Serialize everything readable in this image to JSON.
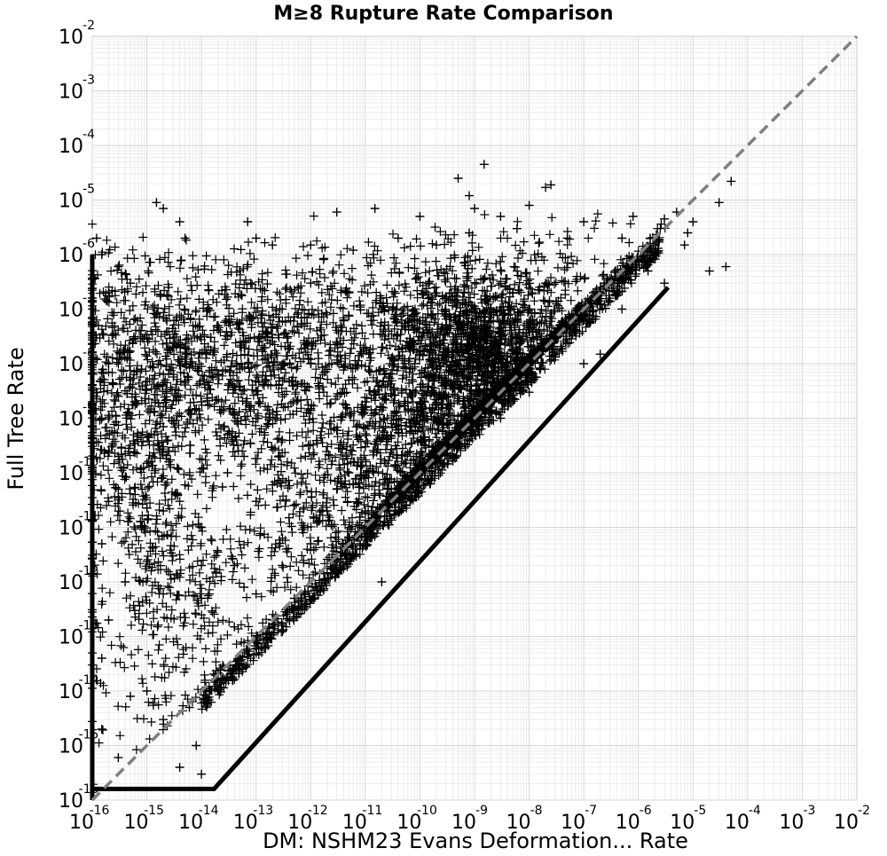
{
  "chart_data": {
    "type": "scatter",
    "title": "M≥8 Rupture Rate Comparison",
    "xlabel": "DM: NSHM23 Evans Deformation... Rate",
    "ylabel": "Full Tree Rate",
    "xscale": "log",
    "yscale": "log",
    "xlim": [
      1e-16,
      0.01
    ],
    "ylim": [
      1e-16,
      0.01
    ],
    "x_exponents": [
      -16,
      -15,
      -14,
      -13,
      -12,
      -11,
      -10,
      -9,
      -8,
      -7,
      -6,
      -5,
      -4,
      -3,
      -2
    ],
    "y_exponents": [
      -16,
      -15,
      -14,
      -13,
      -12,
      -11,
      -10,
      -9,
      -8,
      -7,
      -6,
      -5,
      -4,
      -3,
      -2
    ],
    "tick_base": "10",
    "grid": true,
    "marker": "+",
    "marker_color": "#000000",
    "reference_line": {
      "style": "dashed",
      "color": "#808080",
      "from": [
        1e-16,
        1e-16
      ],
      "to": [
        0.01,
        0.01
      ]
    },
    "lower_bound_line": {
      "color": "#000000",
      "points": [
        [
          1e-16,
          1e-16
        ],
        [
          1e-16,
          1.6e-16
        ],
        [
          1.4e-16,
          1.6e-16
        ],
        [
          1.7e-14,
          1.6e-16
        ],
        [
          3.5e-06,
          2.5e-07
        ]
      ]
    },
    "points": [
      [
        1.5e-09,
        4.5e-05
      ],
      [
        5e-10,
        2.5e-05
      ],
      [
        2.5e-08,
        1.9e-05
      ],
      [
        8e-10,
        1.2e-05
      ],
      [
        2e-08,
        1.7e-05
      ],
      [
        5e-05,
        2.2e-05
      ],
      [
        3e-05,
        9e-06
      ],
      [
        1.5e-15,
        9e-06
      ],
      [
        2e-15,
        7e-06
      ],
      [
        4e-15,
        4e-06
      ],
      [
        7e-14,
        4e-06
      ],
      [
        3e-12,
        6e-06
      ],
      [
        1.5e-11,
        7e-06
      ],
      [
        1e-10,
        5e-06
      ],
      [
        1e-09,
        7e-06
      ],
      [
        3e-09,
        5e-06
      ],
      [
        1e-08,
        8e-06
      ],
      [
        1e-07,
        4e-06
      ],
      [
        8e-07,
        5e-06
      ],
      [
        3e-06,
        4.5e-06
      ],
      [
        5e-06,
        6e-06
      ],
      [
        1e-05,
        4e-06
      ],
      [
        8e-06,
        2.5e-06
      ],
      [
        4e-05,
        6e-07
      ],
      [
        2e-05,
        5e-07
      ],
      [
        1.2e-16,
        2e-06
      ],
      [
        1.5e-16,
        1e-06
      ],
      [
        3e-16,
        6e-07
      ],
      [
        5e-15,
        2e-06
      ],
      [
        1e-13,
        2e-06
      ],
      [
        2e-13,
        1.5e-06
      ],
      [
        1e-12,
        1.5e-06
      ],
      [
        6e-12,
        1.2e-06
      ],
      [
        4e-11,
        2e-06
      ],
      [
        2e-10,
        1.5e-06
      ],
      [
        8e-10,
        2.5e-06
      ],
      [
        6e-09,
        3e-06
      ],
      [
        5e-08,
        2e-06
      ],
      [
        5e-07,
        2e-06
      ],
      [
        2e-06,
        1.2e-06
      ],
      [
        7e-06,
        1.5e-06
      ],
      [
        3e-06,
        3e-07
      ],
      [
        1.5e-06,
        5e-07
      ],
      [
        6e-07,
        6e-07
      ],
      [
        4e-07,
        2e-07
      ],
      [
        1.5e-07,
        2e-07
      ],
      [
        8e-08,
        6e-08
      ],
      [
        3e-08,
        3e-08
      ],
      [
        2e-16,
        2e-07
      ],
      [
        1.3e-16,
        5e-08
      ],
      [
        2e-16,
        1e-08
      ],
      [
        1.5e-16,
        1e-09
      ],
      [
        3e-16,
        2e-10
      ],
      [
        2e-16,
        3e-11
      ],
      [
        1.5e-16,
        5e-12
      ],
      [
        4e-16,
        1e-12
      ],
      [
        2e-16,
        2e-13
      ],
      [
        1.5e-16,
        4e-14
      ],
      [
        5e-16,
        8e-15
      ],
      [
        1.5e-16,
        2e-15
      ],
      [
        3e-16,
        6e-16
      ],
      [
        2e-15,
        3e-15
      ],
      [
        1e-15,
        1e-14
      ],
      [
        6e-15,
        5e-15
      ],
      [
        8e-15,
        1e-15
      ],
      [
        4e-15,
        4e-16
      ],
      [
        1e-14,
        3e-16
      ],
      [
        2e-14,
        1e-14
      ],
      [
        5e-14,
        3e-14
      ],
      [
        2e-13,
        2e-13
      ],
      [
        1e-12,
        5e-12
      ],
      [
        4e-14,
        2e-12
      ],
      [
        1e-14,
        5e-13
      ],
      [
        3e-15,
        3e-12
      ],
      [
        2e-15,
        2e-11
      ],
      [
        1e-14,
        1e-11
      ],
      [
        6e-14,
        8e-13
      ],
      [
        3e-13,
        2e-12
      ],
      [
        1e-13,
        6e-14
      ],
      [
        5e-13,
        5e-13
      ],
      [
        2e-12,
        2e-11
      ],
      [
        8e-12,
        5e-12
      ],
      [
        3e-11,
        5e-11
      ],
      [
        1e-11,
        3e-10
      ],
      [
        5e-12,
        1e-10
      ],
      [
        1e-13,
        3e-11
      ],
      [
        3e-14,
        1e-10
      ],
      [
        2e-15,
        3e-10
      ],
      [
        5e-16,
        5e-09
      ],
      [
        1e-14,
        2e-09
      ],
      [
        5e-14,
        8e-09
      ],
      [
        2e-13,
        3e-08
      ],
      [
        1e-12,
        1e-08
      ],
      [
        5e-12,
        5e-09
      ],
      [
        2e-11,
        2e-08
      ],
      [
        8e-11,
        1e-08
      ],
      [
        3e-10,
        5e-09
      ],
      [
        1e-09,
        3e-08
      ],
      [
        4e-09,
        6e-08
      ],
      [
        1e-08,
        1e-07
      ],
      [
        2e-08,
        3e-07
      ],
      [
        5e-09,
        2e-07
      ],
      [
        2e-09,
        1e-07
      ],
      [
        6e-10,
        5e-08
      ],
      [
        2e-10,
        3e-08
      ],
      [
        6e-11,
        6e-08
      ],
      [
        2e-11,
        1e-07
      ],
      [
        5e-12,
        2e-07
      ],
      [
        1e-12,
        3e-07
      ],
      [
        3e-13,
        1e-07
      ],
      [
        8e-14,
        3e-07
      ],
      [
        2e-14,
        5e-08
      ],
      [
        5e-15,
        2e-08
      ],
      [
        1.5e-15,
        8e-08
      ],
      [
        5e-16,
        3e-07
      ],
      [
        4e-10,
        4e-09
      ],
      [
        1e-10,
        2e-09
      ],
      [
        3e-11,
        8e-10
      ],
      [
        1e-11,
        2e-09
      ],
      [
        3e-12,
        6e-10
      ],
      [
        1e-12,
        1.5e-09
      ],
      [
        3e-13,
        4e-10
      ],
      [
        1e-13,
        1e-09
      ],
      [
        3e-14,
        5e-10
      ],
      [
        8e-15,
        1.5e-09
      ],
      [
        2e-15,
        7e-10
      ],
      [
        6e-16,
        2e-09
      ],
      [
        2e-09,
        1e-08
      ],
      [
        6e-09,
        1.5e-08
      ],
      [
        1.5e-08,
        4e-08
      ],
      [
        3e-09,
        1e-09
      ],
      [
        1e-09,
        5e-10
      ],
      [
        3e-10,
        3e-10
      ],
      [
        1e-10,
        1e-10
      ],
      [
        3e-11,
        4e-11
      ],
      [
        1e-08,
        3e-09
      ],
      [
        5e-08,
        5e-08
      ],
      [
        1e-07,
        1e-08
      ],
      [
        2e-07,
        1.5e-08
      ],
      [
        5e-07,
        1e-07
      ],
      [
        6e-14,
        2e-10
      ],
      [
        2e-13,
        6e-11
      ],
      [
        8e-13,
        2e-10
      ],
      [
        3e-12,
        5e-11
      ],
      [
        1e-11,
        2e-11
      ],
      [
        5e-15,
        6e-11
      ],
      [
        1e-14,
        2e-12
      ],
      [
        2e-15,
        6e-13
      ],
      [
        6e-16,
        3e-13
      ],
      [
        8e-16,
        1e-11
      ],
      [
        3e-16,
        5e-11
      ],
      [
        1e-15,
        1.5e-10
      ],
      [
        4e-15,
        3e-11
      ],
      [
        1.5e-14,
        6e-12
      ],
      [
        4e-14,
        1.5e-13
      ],
      [
        1e-13,
        6e-13
      ],
      [
        4e-13,
        1.5e-11
      ],
      [
        1.5e-12,
        7e-13
      ],
      [
        6e-12,
        3e-12
      ],
      [
        2e-11,
        1e-12
      ]
    ]
  }
}
